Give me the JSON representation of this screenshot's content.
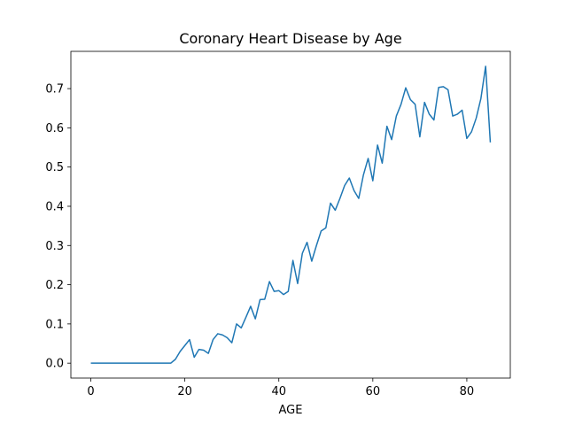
{
  "chart_data": {
    "type": "line",
    "title": "Coronary Heart Disease by Age",
    "xlabel": "AGE",
    "ylabel": "",
    "xlim": [
      -4.25,
      89.25
    ],
    "ylim": [
      -0.038,
      0.795
    ],
    "xticks": [
      0,
      20,
      40,
      60,
      80
    ],
    "yticks": [
      0.0,
      0.1,
      0.2,
      0.3,
      0.4,
      0.5,
      0.6,
      0.7
    ],
    "grid": false,
    "line_color": "#1f77b4",
    "series": [
      {
        "x": [
          0,
          1,
          2,
          3,
          4,
          5,
          6,
          7,
          8,
          9,
          10,
          11,
          12,
          13,
          14,
          15,
          16,
          17,
          18,
          19,
          20,
          21,
          22,
          23,
          24,
          25,
          26,
          27,
          28,
          29,
          30,
          31,
          32,
          33,
          34,
          35,
          36,
          37,
          38,
          39,
          40,
          41,
          42,
          43,
          44,
          45,
          46,
          47,
          48,
          49,
          50,
          51,
          52,
          53,
          54,
          55,
          56,
          57,
          58,
          59,
          60,
          61,
          62,
          63,
          64,
          65,
          66,
          67,
          68,
          69,
          70,
          71,
          72,
          73,
          74,
          75,
          76,
          77,
          78,
          79,
          80,
          81,
          82,
          83,
          84,
          85
        ],
        "values": [
          0,
          0,
          0,
          0,
          0,
          0,
          0,
          0,
          0,
          0,
          0,
          0,
          0,
          0,
          0,
          0,
          0,
          0,
          0.01,
          0.03,
          0.045,
          0.06,
          0.015,
          0.035,
          0.033,
          0.025,
          0.06,
          0.075,
          0.072,
          0.065,
          0.052,
          0.1,
          0.09,
          0.117,
          0.145,
          0.113,
          0.162,
          0.163,
          0.208,
          0.183,
          0.185,
          0.175,
          0.183,
          0.262,
          0.203,
          0.28,
          0.308,
          0.26,
          0.3,
          0.337,
          0.345,
          0.408,
          0.39,
          0.42,
          0.453,
          0.472,
          0.44,
          0.42,
          0.48,
          0.522,
          0.465,
          0.556,
          0.51,
          0.604,
          0.57,
          0.63,
          0.66,
          0.702,
          0.672,
          0.66,
          0.577,
          0.665,
          0.635,
          0.62,
          0.703,
          0.705,
          0.697,
          0.63,
          0.635,
          0.645,
          0.573,
          0.59,
          0.625,
          0.675,
          0.757,
          0.563
        ]
      }
    ]
  }
}
